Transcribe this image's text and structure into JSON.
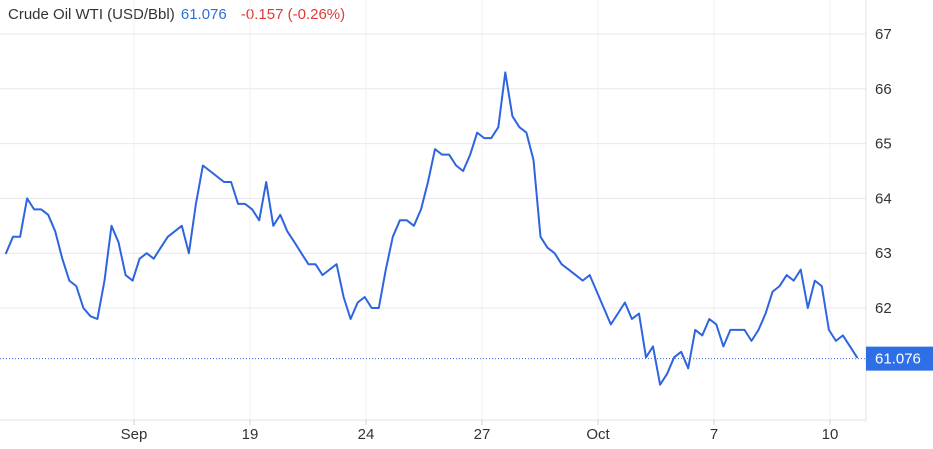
{
  "header": {
    "title": "Crude Oil WTI (USD/Bbl)",
    "price": "61.076",
    "change": "-0.157 (-0.26%)"
  },
  "colors": {
    "line": "#2e64e0",
    "price_text": "#2e6fd6",
    "change_text": "#e03a3a",
    "grid": "#e8e8e8",
    "last_label_bg": "#2e6fe6"
  },
  "chart_data": {
    "type": "line",
    "title": "Crude Oil WTI (USD/Bbl)",
    "x_tick_labels": [
      "Sep",
      "19",
      "24",
      "27",
      "Oct",
      "7",
      "10"
    ],
    "y_tick_labels": [
      "62",
      "63",
      "64",
      "65",
      "66",
      "67"
    ],
    "y_ticks": [
      62,
      63,
      64,
      65,
      66,
      67
    ],
    "ylim": [
      59.8,
      67.4
    ],
    "grid": true,
    "last_value": 61.076,
    "last_label": "61.076",
    "series": [
      {
        "values": [
          63.0,
          63.3,
          63.3,
          64.0,
          63.8,
          63.8,
          63.7,
          63.4,
          62.9,
          62.5,
          62.4,
          62.0,
          61.85,
          61.8,
          62.5,
          63.5,
          63.2,
          62.6,
          62.5,
          62.9,
          63.0,
          62.9,
          63.1,
          63.3,
          63.4,
          63.5,
          63.0,
          63.9,
          64.6,
          64.5,
          64.4,
          64.3,
          64.3,
          63.9,
          63.9,
          63.8,
          63.6,
          64.3,
          63.5,
          63.7,
          63.4,
          63.2,
          63.0,
          62.8,
          62.8,
          62.6,
          62.7,
          62.8,
          62.2,
          61.8,
          62.1,
          62.2,
          62.0,
          62.0,
          62.7,
          63.3,
          63.6,
          63.6,
          63.5,
          63.8,
          64.3,
          64.9,
          64.8,
          64.8,
          64.6,
          64.5,
          64.8,
          65.2,
          65.1,
          65.1,
          65.3,
          66.3,
          65.5,
          65.3,
          65.2,
          64.7,
          63.3,
          63.1,
          63.0,
          62.8,
          62.7,
          62.6,
          62.5,
          62.6,
          62.3,
          62.0,
          61.7,
          61.9,
          62.1,
          61.8,
          61.9,
          61.1,
          61.3,
          60.6,
          60.8,
          61.1,
          61.2,
          60.9,
          61.6,
          61.5,
          61.8,
          61.7,
          61.3,
          61.6,
          61.6,
          61.6,
          61.4,
          61.6,
          61.9,
          62.3,
          62.4,
          62.6,
          62.5,
          62.7,
          62.0,
          62.5,
          62.4,
          61.6,
          61.4,
          61.5,
          61.3,
          61.1
        ]
      }
    ]
  }
}
